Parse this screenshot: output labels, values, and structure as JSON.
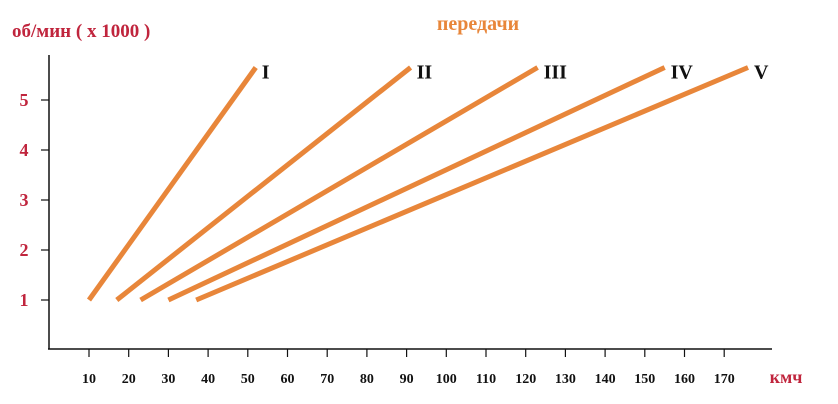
{
  "chart_data": {
    "type": "line",
    "title": "передачи",
    "ylabel": "об/мин ( x 1000 )",
    "xlabel": "кмч",
    "x_ticks": [
      10,
      20,
      30,
      40,
      50,
      60,
      70,
      80,
      90,
      100,
      110,
      120,
      130,
      140,
      150,
      160,
      170
    ],
    "y_ticks": [
      1,
      2,
      3,
      4,
      5
    ],
    "xlim": [
      0,
      180
    ],
    "ylim": [
      0,
      5.8
    ],
    "grid": false,
    "line_color": "#e8863a",
    "series": [
      {
        "name": "I",
        "x": [
          10,
          52
        ],
        "y": [
          1,
          5.65
        ]
      },
      {
        "name": "II",
        "x": [
          17,
          91
        ],
        "y": [
          1,
          5.65
        ]
      },
      {
        "name": "III",
        "x": [
          23,
          123
        ],
        "y": [
          1,
          5.65
        ]
      },
      {
        "name": "IV",
        "x": [
          30,
          155
        ],
        "y": [
          1,
          5.65
        ]
      },
      {
        "name": "V",
        "x": [
          37,
          176
        ],
        "y": [
          1,
          5.65
        ]
      }
    ]
  }
}
